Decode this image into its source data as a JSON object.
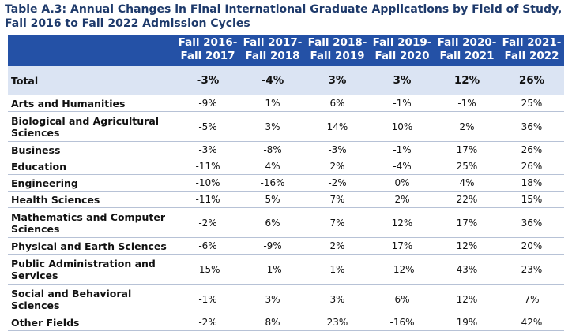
{
  "title": "Table A.3: Annual Changes in Final International Graduate Applications by Field of Study, Fall 2016 to Fall 2022 Admission Cycles",
  "columns": [
    [
      "Fall 2016-",
      "Fall 2017"
    ],
    [
      "Fall 2017-",
      "Fall 2018"
    ],
    [
      "Fall 2018-",
      "Fall 2019"
    ],
    [
      "Fall 2019-",
      "Fall 2020"
    ],
    [
      "Fall 2020-",
      "Fall 2021"
    ],
    [
      "Fall 2021-",
      "Fall 2022"
    ]
  ],
  "total": {
    "label": "Total",
    "values": [
      "-3%",
      "-4%",
      "3%",
      "3%",
      "12%",
      "26%"
    ]
  },
  "rows": [
    {
      "field": "Arts and Humanities",
      "values": [
        "-9%",
        "1%",
        "6%",
        "-1%",
        "-1%",
        "25%"
      ]
    },
    {
      "field": "Biological and Agricultural Sciences",
      "values": [
        "-5%",
        "3%",
        "14%",
        "10%",
        "2%",
        "36%"
      ]
    },
    {
      "field": "Business",
      "values": [
        "-3%",
        "-8%",
        "-3%",
        "-1%",
        "17%",
        "26%"
      ]
    },
    {
      "field": "Education",
      "values": [
        "-11%",
        "4%",
        "2%",
        "-4%",
        "25%",
        "26%"
      ]
    },
    {
      "field": "Engineering",
      "values": [
        "-10%",
        "-16%",
        "-2%",
        "0%",
        "4%",
        "18%"
      ]
    },
    {
      "field": "Health Sciences",
      "values": [
        "-11%",
        "5%",
        "7%",
        "2%",
        "22%",
        "15%"
      ]
    },
    {
      "field": "Mathematics and Computer Sciences",
      "values": [
        "-2%",
        "6%",
        "7%",
        "12%",
        "17%",
        "36%"
      ]
    },
    {
      "field": "Physical and Earth Sciences",
      "values": [
        "-6%",
        "-9%",
        "2%",
        "17%",
        "12%",
        "20%"
      ]
    },
    {
      "field": "Public Administration and Services",
      "values": [
        "-15%",
        "-1%",
        "1%",
        "-12%",
        "43%",
        "23%"
      ]
    },
    {
      "field": "Social and Behavioral Sciences",
      "values": [
        "-1%",
        "3%",
        "3%",
        "6%",
        "12%",
        "7%"
      ]
    },
    {
      "field": "Other Fields",
      "values": [
        "-2%",
        "8%",
        "23%",
        "-16%",
        "19%",
        "42%"
      ]
    }
  ]
}
